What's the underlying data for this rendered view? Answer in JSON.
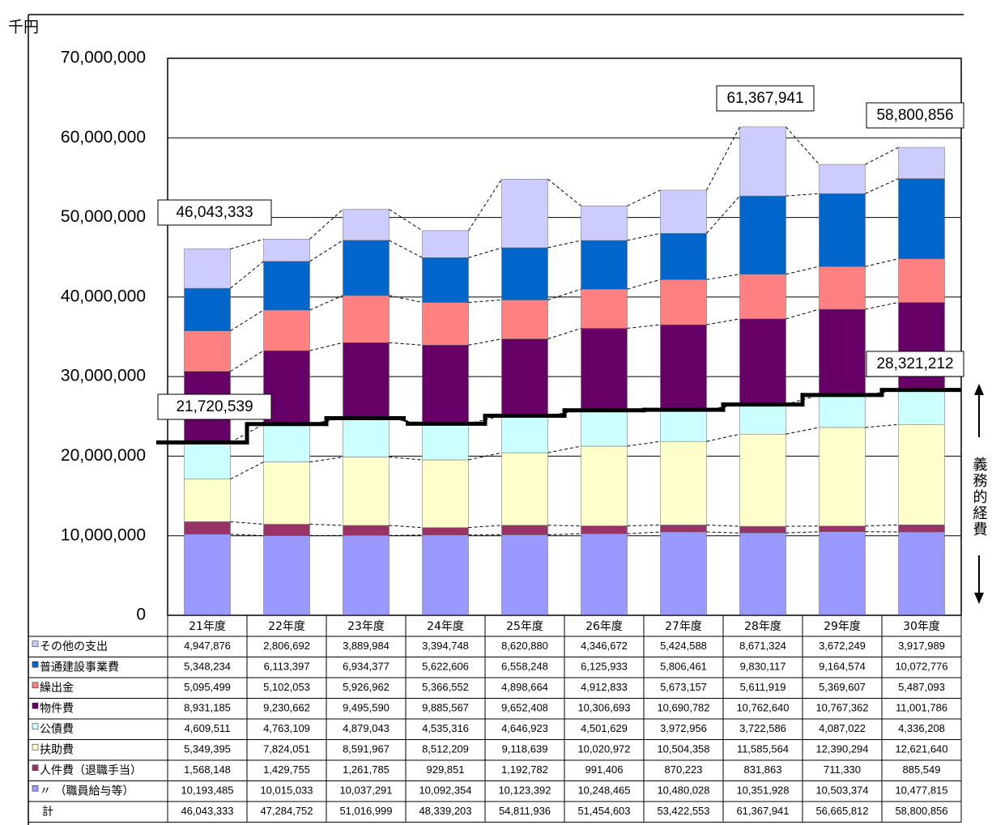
{
  "chart_data": {
    "type": "stacked-bar",
    "y_unit": "千円",
    "categories": [
      "21年度",
      "22年度",
      "23年度",
      "24年度",
      "25年度",
      "26年度",
      "27年度",
      "28年度",
      "29年度",
      "30年度"
    ],
    "ylim": [
      0,
      70000000
    ],
    "yticks": [
      0,
      {
        "value": 10000000,
        "label": "10,000,000"
      },
      {
        "value": 20000000,
        "label": "20,000,000"
      },
      {
        "value": 30000000,
        "label": "30,000,000"
      },
      {
        "value": 40000000,
        "label": "40,000,000"
      },
      {
        "value": 50000000,
        "label": "50,000,000"
      },
      {
        "value": 60000000,
        "label": "60,000,000"
      },
      {
        "value": 70000000,
        "label": "70,000,000"
      }
    ],
    "grid": true,
    "series": [
      {
        "name": "その他の支出",
        "color": "#ccccff",
        "values": [
          4947876,
          2806692,
          3889984,
          3394748,
          8620880,
          4346672,
          5424588,
          8671324,
          3672249,
          3917989
        ],
        "value_labels": [
          "4,947,876",
          "2,806,692",
          "3,889,984",
          "3,394,748",
          "8,620,880",
          "4,346,672",
          "5,424,588",
          "8,671,324",
          "3,672,249",
          "3,917,989"
        ]
      },
      {
        "name": "普通建設事業費",
        "color": "#0066cc",
        "values": [
          5348234,
          6113397,
          6934377,
          5622606,
          6558248,
          6125933,
          5806461,
          9830117,
          9164574,
          10072776
        ],
        "value_labels": [
          "5,348,234",
          "6,113,397",
          "6,934,377",
          "5,622,606",
          "6,558,248",
          "6,125,933",
          "5,806,461",
          "9,830,117",
          "9,164,574",
          "10,072,776"
        ]
      },
      {
        "name": "繰出金",
        "color": "#ff8080",
        "values": [
          5095499,
          5102053,
          5926962,
          5366552,
          4898664,
          4912833,
          5673157,
          5611919,
          5369607,
          5487093
        ],
        "value_labels": [
          "5,095,499",
          "5,102,053",
          "5,926,962",
          "5,366,552",
          "4,898,664",
          "4,912,833",
          "5,673,157",
          "5,611,919",
          "5,369,607",
          "5,487,093"
        ]
      },
      {
        "name": "物件費",
        "color": "#660066",
        "values": [
          8931185,
          9230662,
          9495590,
          9885567,
          9652408,
          10306693,
          10690782,
          10762640,
          10767362,
          11001786
        ],
        "value_labels": [
          "8,931,185",
          "9,230,662",
          "9,495,590",
          "9,885,567",
          "9,652,408",
          "10,306,693",
          "10,690,782",
          "10,762,640",
          "10,767,362",
          "11,001,786"
        ]
      },
      {
        "name": "公債費",
        "color": "#ccffff",
        "values": [
          4609511,
          4763109,
          4879043,
          4535316,
          4646923,
          4501629,
          3972956,
          3722586,
          4087022,
          4336208
        ],
        "value_labels": [
          "4,609,511",
          "4,763,109",
          "4,879,043",
          "4,535,316",
          "4,646,923",
          "4,501,629",
          "3,972,956",
          "3,722,586",
          "4,087,022",
          "4,336,208"
        ]
      },
      {
        "name": "扶助費",
        "color": "#ffffcc",
        "values": [
          5349395,
          7824051,
          8591967,
          8512209,
          9118639,
          10020972,
          10504358,
          11585564,
          12390294,
          12621640
        ],
        "value_labels": [
          "5,349,395",
          "7,824,051",
          "8,591,967",
          "8,512,209",
          "9,118,639",
          "10,020,972",
          "10,504,358",
          "11,585,564",
          "12,390,294",
          "12,621,640"
        ]
      },
      {
        "name": "人件費（退職手当）",
        "color": "#993366",
        "values": [
          1568148,
          1429755,
          1261785,
          929851,
          1192782,
          991406,
          870223,
          831863,
          711330,
          885549
        ],
        "value_labels": [
          "1,568,148",
          "1,429,755",
          "1,261,785",
          "929,851",
          "1,192,782",
          "991,406",
          "870,223",
          "831,863",
          "711,330",
          "885,549"
        ]
      },
      {
        "name": "〃 （職員給与等）",
        "color": "#9999ff",
        "values": [
          10193485,
          10015033,
          10037291,
          10092354,
          10123392,
          10248465,
          10480028,
          10351928,
          10503374,
          10477815
        ],
        "value_labels": [
          "10,193,485",
          "10,015,033",
          "10,037,291",
          "10,092,354",
          "10,123,392",
          "10,248,465",
          "10,480,028",
          "10,351,928",
          "10,503,374",
          "10,477,815"
        ]
      }
    ],
    "totals": {
      "name": "計",
      "values": [
        46043333,
        47284752,
        51016999,
        48339203,
        54811936,
        51454603,
        53422553,
        61367941,
        56665812,
        58800856
      ],
      "value_labels": [
        "46,043,333",
        "47,284,752",
        "51,016,999",
        "48,339,203",
        "54,811,936",
        "51,454,603",
        "53,422,553",
        "61,367,941",
        "56,665,812",
        "58,800,856"
      ]
    },
    "step_line": {
      "name": "義務的経費",
      "color": "#000000",
      "values": [
        21720539,
        24031948,
        24770086,
        24069730,
        25081736,
        25762472,
        25827565,
        26491941,
        27692020,
        28321212
      ]
    },
    "annotations": [
      {
        "text": "46,043,333",
        "category": "21年度",
        "value": 46043333
      },
      {
        "text": "21,720,539",
        "category": "21年度",
        "value": 21720539
      },
      {
        "text": "61,367,941",
        "category": "28年度",
        "value": 61367941
      },
      {
        "text": "58,800,856",
        "category": "30年度",
        "value": 58800856
      },
      {
        "text": "28,321,212",
        "category": "30年度",
        "value": 28321212
      }
    ]
  }
}
